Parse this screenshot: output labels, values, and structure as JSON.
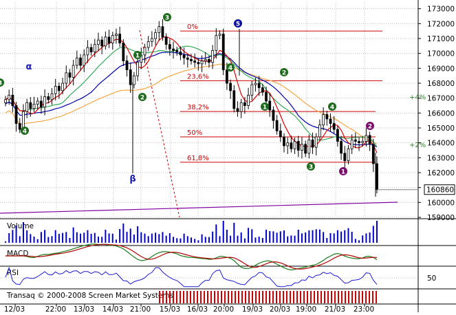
{
  "chart_data": {
    "type": "candlestick",
    "price_axis": {
      "ticks": [
        "173000",
        "172000",
        "171000",
        "170000",
        "169000",
        "168000",
        "167000",
        "166000",
        "165000",
        "164000",
        "163000",
        "162000",
        "161000",
        "160000",
        "159000"
      ],
      "range": [
        159000,
        173400
      ],
      "last_price_label": "160860",
      "last_price": 160860
    },
    "time_axis": {
      "labels": [
        "12/03",
        "22:00",
        "13/03",
        "14/03",
        "21:00",
        "15/03",
        "16/03",
        "20:00",
        "19/03",
        "20/03",
        "19:00",
        "21/03",
        "23:00"
      ]
    },
    "fibonacci": [
      {
        "label": "0%",
        "value": 171500
      },
      {
        "label": "23,6%",
        "value": 168170
      },
      {
        "label": "38,2%",
        "value": 166100
      },
      {
        "label": "50%",
        "value": 164400
      },
      {
        "label": "61,8%",
        "value": 162700
      }
    ],
    "percent_markers": [
      {
        "label": "+4%",
        "value": 167100
      },
      {
        "label": "+2%",
        "value": 163900
      }
    ],
    "wave_labels": [
      {
        "label": "α",
        "series": "greek"
      },
      {
        "label": "β",
        "series": "greek"
      },
      {
        "label": "3",
        "color": "green"
      },
      {
        "label": "5",
        "color": "blue"
      },
      {
        "label": "1",
        "color": "green"
      },
      {
        "label": "2",
        "color": "green"
      },
      {
        "label": "4",
        "color": "green"
      },
      {
        "label": "3",
        "color": "green"
      },
      {
        "label": "1",
        "color": "purple"
      },
      {
        "label": "2",
        "color": "purple"
      }
    ],
    "close_prices": [
      166900,
      167200,
      166500,
      165300,
      164900,
      166100,
      166700,
      166300,
      166600,
      166800,
      166400,
      167100,
      166900,
      167300,
      167800,
      167500,
      168000,
      168700,
      168400,
      169200,
      169700,
      169200,
      169900,
      170400,
      170100,
      170600,
      170900,
      170500,
      171100,
      170700,
      171200,
      171300,
      170700,
      169500,
      168900,
      167900,
      168500,
      169400,
      169900,
      170400,
      170800,
      171000,
      171400,
      171800,
      171100,
      170600,
      170300,
      170200,
      170100,
      169900,
      169700,
      169600,
      169500,
      169400,
      169300,
      169500,
      169600,
      169400,
      170200,
      171200,
      171300,
      168900,
      168000,
      167500,
      166300,
      166100,
      166700,
      166500,
      167200,
      167900,
      168000,
      167700,
      167400,
      166800,
      166200,
      165500,
      164800,
      164400,
      163800,
      164000,
      163600,
      164100,
      163500,
      163900,
      163300,
      164200,
      163700,
      164400,
      165200,
      165900,
      165600,
      165300,
      164900,
      164100,
      163300,
      162800,
      163600,
      164200,
      164100,
      164000,
      164100,
      164500,
      163900,
      162600,
      160860
    ],
    "panels": [
      {
        "name": "Volume"
      },
      {
        "name": "MACD"
      },
      {
        "name": "RSI",
        "level_label": "50"
      }
    ],
    "footer_text": "Transaq © 2000-2008 Screen Market Systems",
    "colors": {
      "fib_line": "#cc0000",
      "fib_text": "#cc0000",
      "percent_text": "#2a8a2a",
      "ma_red": "#dd0000",
      "ma_blue": "#0000aa",
      "ma_green": "#33aa55",
      "ma_orange": "#f5a742",
      "volume": "#0000cc",
      "grid": "#bfbfbf"
    }
  }
}
